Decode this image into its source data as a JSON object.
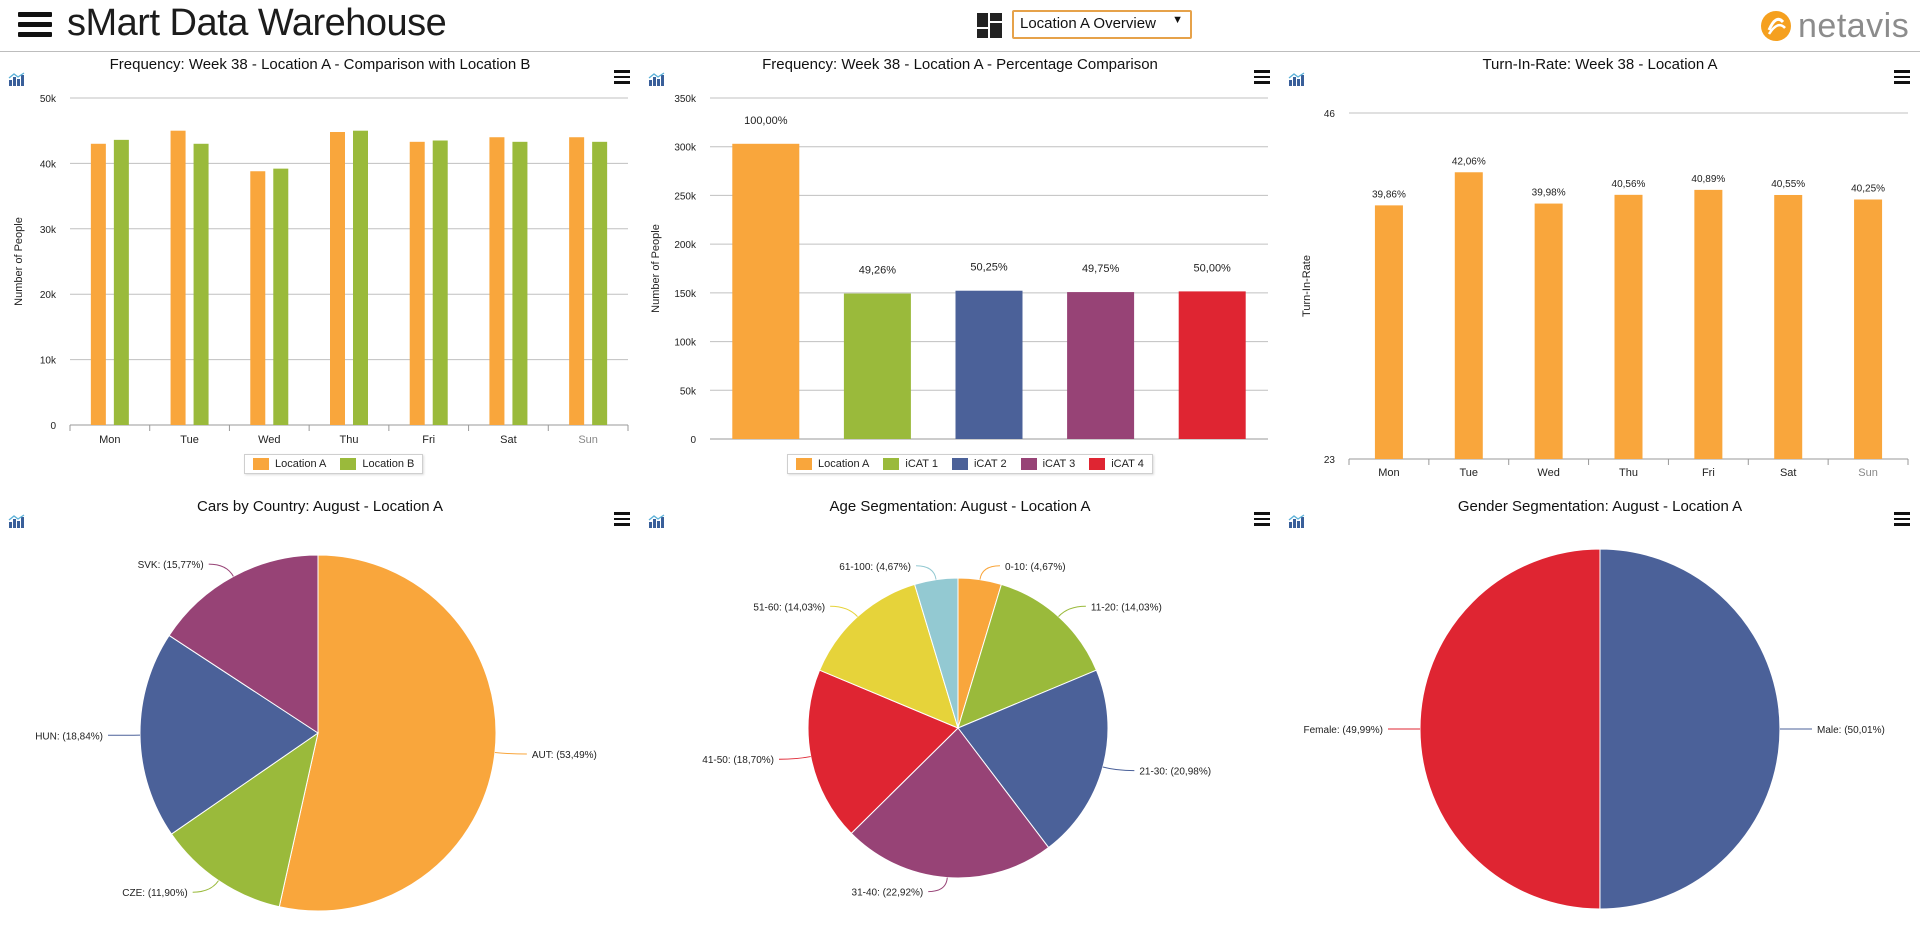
{
  "header": {
    "title": "sMart Data Warehouse",
    "dashboard_selected": "Location A Overview",
    "logo_text": "netavis"
  },
  "colors": {
    "orange": "#f9a63c",
    "green": "#9aba3b",
    "blue": "#4b6199",
    "purple": "#974376",
    "red": "#df2532",
    "yellow": "#e6d33a",
    "lightblue": "#93c9d2"
  },
  "chart_data": [
    {
      "id": "freq-compare",
      "type": "bar",
      "title": "Frequency: Week 38 - Location A - Comparison with Location B",
      "ylabel": "Number of People",
      "categories": [
        "Mon",
        "Tue",
        "Wed",
        "Thu",
        "Fri",
        "Sat",
        "Sun"
      ],
      "series": [
        {
          "name": "Location A",
          "color": "#f9a63c",
          "values": [
            43000,
            45000,
            38800,
            44800,
            43300,
            44000,
            44000
          ]
        },
        {
          "name": "Location B",
          "color": "#9aba3b",
          "values": [
            43600,
            43000,
            39200,
            45000,
            43500,
            43300,
            43300
          ]
        }
      ],
      "ylim": [
        0,
        50000
      ],
      "yticks": [
        "0",
        "10k",
        "20k",
        "30k",
        "40k",
        "50k"
      ],
      "legend": "bottom"
    },
    {
      "id": "freq-percent",
      "type": "bar",
      "title": "Frequency: Week 38 - Location A - Percentage Comparison",
      "ylabel": "Number of People",
      "categories": [
        "Location A",
        "iCAT 1",
        "iCAT 2",
        "iCAT 3",
        "iCAT 4"
      ],
      "values": [
        303000,
        149300,
        152200,
        150800,
        151500
      ],
      "data_labels": [
        "100,00%",
        "49,26%",
        "50,25%",
        "49,75%",
        "50,00%"
      ],
      "colors": [
        "#f9a63c",
        "#9aba3b",
        "#4b6199",
        "#974376",
        "#df2532"
      ],
      "ylim": [
        0,
        350000
      ],
      "yticks": [
        "0",
        "50k",
        "100k",
        "150k",
        "200k",
        "250k",
        "300k",
        "350k"
      ],
      "legend": "bottom"
    },
    {
      "id": "turn-in-rate",
      "type": "bar",
      "title": "Turn-In-Rate: Week 38 - Location A",
      "ylabel": "Turn-In-Rate",
      "categories": [
        "Mon",
        "Tue",
        "Wed",
        "Thu",
        "Fri",
        "Sat",
        "Sun"
      ],
      "values": [
        39.86,
        42.06,
        39.98,
        40.56,
        40.89,
        40.55,
        40.25
      ],
      "data_labels": [
        "39,86%",
        "42,06%",
        "39,98%",
        "40,56%",
        "40,89%",
        "40,55%",
        "40,25%"
      ],
      "color": "#f9a63c",
      "ylim": [
        23,
        46
      ],
      "yticks": [
        "23",
        "46"
      ]
    },
    {
      "id": "cars-country",
      "type": "pie",
      "title": "Cars by Country: August - Location A",
      "slices": [
        {
          "label": "AUT: (53,49%)",
          "value": 53.49,
          "color": "#f9a63c"
        },
        {
          "label": "CZE: (11,90%)",
          "value": 11.9,
          "color": "#9aba3b"
        },
        {
          "label": "HUN: (18,84%)",
          "value": 18.84,
          "color": "#4b6199"
        },
        {
          "label": "SVK: (15,77%)",
          "value": 15.77,
          "color": "#974376"
        }
      ]
    },
    {
      "id": "age-seg",
      "type": "pie",
      "title": "Age Segmentation: August - Location A",
      "slices": [
        {
          "label": "0-10: (4,67%)",
          "value": 4.67,
          "color": "#f9a63c"
        },
        {
          "label": "11-20: (14,03%)",
          "value": 14.03,
          "color": "#9aba3b"
        },
        {
          "label": "21-30: (20,98%)",
          "value": 20.98,
          "color": "#4b6199"
        },
        {
          "label": "31-40: (22,92%)",
          "value": 22.92,
          "color": "#974376"
        },
        {
          "label": "41-50: (18,70%)",
          "value": 18.7,
          "color": "#df2532"
        },
        {
          "label": "51-60: (14,03%)",
          "value": 14.03,
          "color": "#e6d33a"
        },
        {
          "label": "61-100: (4,67%)",
          "value": 4.67,
          "color": "#93c9d2"
        }
      ]
    },
    {
      "id": "gender-seg",
      "type": "pie",
      "title": "Gender Segmentation: August - Location A",
      "slices": [
        {
          "label": "Male: (50,01%)",
          "value": 50.01,
          "color": "#4b6199"
        },
        {
          "label": "Female: (49,99%)",
          "value": 49.99,
          "color": "#df2532"
        }
      ]
    }
  ]
}
